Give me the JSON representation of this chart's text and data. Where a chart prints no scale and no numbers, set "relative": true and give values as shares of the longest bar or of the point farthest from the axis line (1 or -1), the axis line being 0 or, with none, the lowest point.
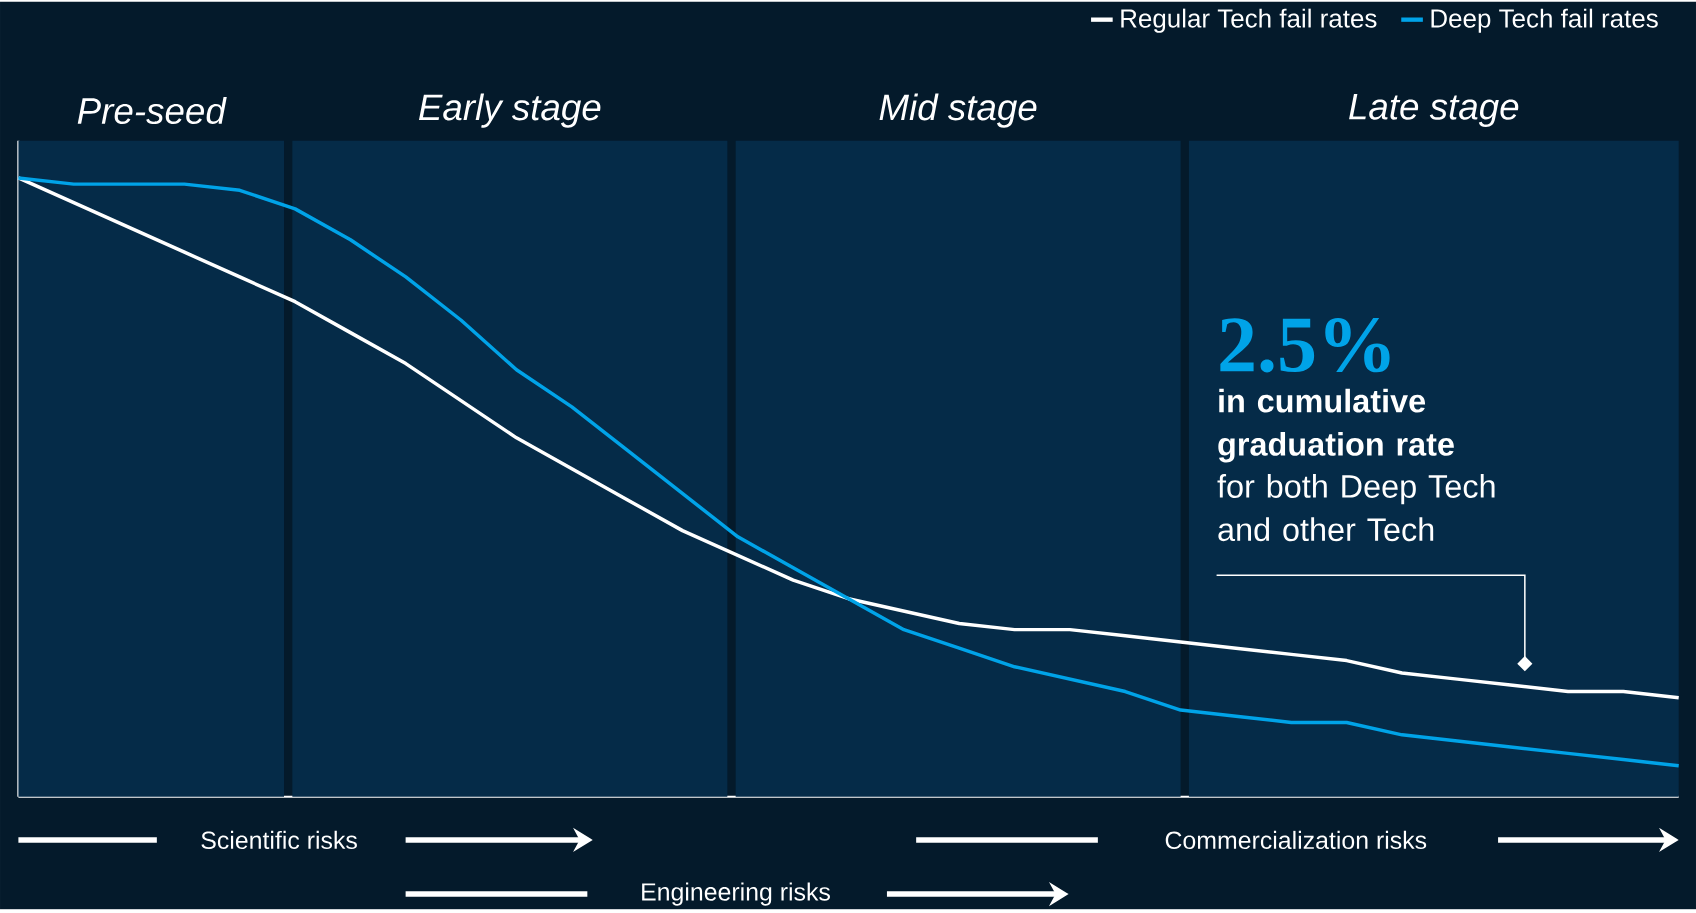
{
  "chart_data": {
    "type": "line",
    "relative": true,
    "legend": "top right",
    "categories": [
      null,
      null,
      null,
      null,
      null,
      null,
      null,
      null,
      null,
      null,
      null,
      null,
      null,
      null,
      null,
      null,
      null,
      null,
      null,
      null,
      null,
      null,
      null,
      null,
      null,
      null,
      null,
      null,
      null,
      null,
      null
    ],
    "series": [
      {
        "name": "Regular Tech fail rates",
        "color": "#ffffff",
        "values": [
          1.0,
          0.96,
          0.92,
          0.88,
          0.84,
          0.8,
          0.75,
          0.7,
          0.64,
          0.58,
          0.53,
          0.48,
          0.43,
          0.39,
          0.35,
          0.32,
          0.3,
          0.28,
          0.27,
          0.27,
          0.26,
          0.25,
          0.24,
          0.23,
          0.22,
          0.2,
          0.19,
          0.18,
          0.17,
          0.17,
          0.16
        ]
      },
      {
        "name": "Deep Tech fail rates",
        "color": "#00a3e8",
        "values": [
          1.0,
          0.99,
          0.99,
          0.99,
          0.98,
          0.95,
          0.9,
          0.84,
          0.77,
          0.69,
          0.63,
          0.56,
          0.49,
          0.42,
          0.37,
          0.32,
          0.27,
          0.24,
          0.21,
          0.19,
          0.17,
          0.14,
          0.13,
          0.12,
          0.12,
          0.1,
          0.09,
          0.08,
          0.07,
          0.06,
          0.05
        ]
      }
    ],
    "annotations": [
      "2.5%",
      "in cumulative graduation rate",
      "for both Deep Tech and other Tech",
      "Scientific risks",
      "Engineering risks",
      "Commercialization risks",
      "Pre-seed",
      "Early stage",
      "Mid stage",
      "Late stage"
    ]
  }
}
